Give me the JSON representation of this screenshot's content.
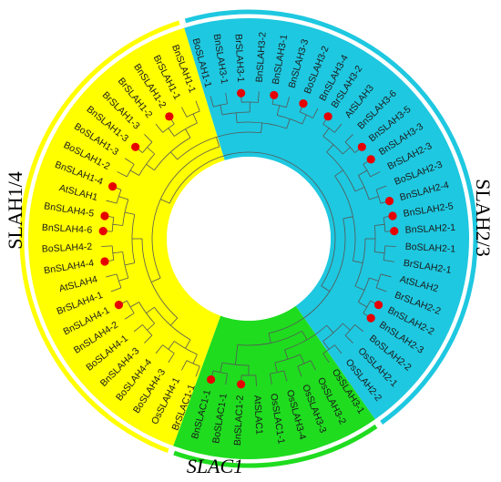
{
  "colors": {
    "slah14": "#ffff00",
    "slah23": "#1ec8e0",
    "slac1": "#1fdc1f",
    "marker": "#e60000",
    "branch": "#555555",
    "ring_slah14": "#ffff00",
    "ring_slah23": "#1ec8e0",
    "ring_slac1": "#1fdc1f"
  },
  "clades": [
    {
      "id": "slah14",
      "label": "SLAH1/4",
      "start": 200,
      "end": 343
    },
    {
      "id": "slah23",
      "label": "SLAH2/3",
      "start": 343,
      "end": 505
    },
    {
      "id": "slac1",
      "label": "SLAC1",
      "start": 505,
      "end": 560
    }
  ],
  "leaves": [
    {
      "name": "BnSLAH3-1",
      "angle": 351,
      "marked": false
    },
    {
      "name": "BrSLAH3-1",
      "angle": 357,
      "marked": true
    },
    {
      "name": "BnSLAH3-2",
      "angle": 4,
      "marked": false
    },
    {
      "name": "BnSLAH3-1",
      "angle": 10,
      "marked": true
    },
    {
      "name": "BnSLAH3-3",
      "angle": 16,
      "marked": false
    },
    {
      "name": "BoSLAH3-2",
      "angle": 22,
      "marked": true
    },
    {
      "name": "BnSLAH3-4",
      "angle": 28,
      "marked": false
    },
    {
      "name": "BrSLAH3-2",
      "angle": 33,
      "marked": true
    },
    {
      "name": "AtSLAH3",
      "angle": 39,
      "marked": false
    },
    {
      "name": "BnSLAH3-6",
      "angle": 45,
      "marked": false
    },
    {
      "name": "BnSLAH3-5",
      "angle": 51,
      "marked": true
    },
    {
      "name": "BnSLAH3-3",
      "angle": 57,
      "marked": true
    },
    {
      "name": "BrSLAH2-3",
      "angle": 63,
      "marked": false
    },
    {
      "name": "BoSLAH2-3",
      "angle": 69,
      "marked": false
    },
    {
      "name": "BnSLAH2-4",
      "angle": 75,
      "marked": true
    },
    {
      "name": "BnSLAH2-5",
      "angle": 81,
      "marked": true
    },
    {
      "name": "BnSLAH2-1",
      "angle": 87,
      "marked": true
    },
    {
      "name": "BoSLAH2-1",
      "angle": 93,
      "marked": false
    },
    {
      "name": "BrSLAH2-1",
      "angle": 99,
      "marked": false
    },
    {
      "name": "AtSLAH2",
      "angle": 105,
      "marked": false
    },
    {
      "name": "BrSLAH2-2",
      "angle": 111,
      "marked": false
    },
    {
      "name": "BnSLAH2-2",
      "angle": 117,
      "marked": true
    },
    {
      "name": "BnSLAH2-3",
      "angle": 123,
      "marked": true
    },
    {
      "name": "BoSLAH2-2",
      "angle": 129,
      "marked": false
    },
    {
      "name": "OsSLAH2-1",
      "angle": 135,
      "marked": false
    },
    {
      "name": "OsSLAH2-2",
      "angle": 141,
      "marked": false
    },
    {
      "name": "OsSLAH3-1",
      "angle": 147,
      "marked": false
    },
    {
      "name": "OsSLAH3-2",
      "angle": 153,
      "marked": false
    },
    {
      "name": "OsSLAH3-3",
      "angle": 159,
      "marked": false
    },
    {
      "name": "OsSLAH3-4",
      "angle": 165,
      "marked": false
    },
    {
      "name": "OsSLAC1-1",
      "angle": 171,
      "marked": false
    },
    {
      "name": "AtSLAC1",
      "angle": 177,
      "marked": false
    },
    {
      "name": "BnSLAC1-2",
      "angle": 183,
      "marked": true
    },
    {
      "name": "BoSLAC1-1",
      "angle": 189,
      "marked": false
    },
    {
      "name": "BnSLAC1-1",
      "angle": 195,
      "marked": true
    },
    {
      "name": "BrSLAC1-1",
      "angle": 201,
      "marked": false
    },
    {
      "name": "OsSLAH4-1",
      "angle": 207,
      "marked": false
    },
    {
      "name": "BoSLAH4-3",
      "angle": 213,
      "marked": false
    },
    {
      "name": "BoSLAH4-4",
      "angle": 219,
      "marked": false
    },
    {
      "name": "BnSLAH4-3",
      "angle": 225,
      "marked": false
    },
    {
      "name": "BoSLAH4-1",
      "angle": 231,
      "marked": false
    },
    {
      "name": "BnSLAH4-2",
      "angle": 237,
      "marked": false
    },
    {
      "name": "BnSLAH4-1",
      "angle": 243,
      "marked": true
    },
    {
      "name": "BrSLAH4-1",
      "angle": 249,
      "marked": false
    },
    {
      "name": "AtSLAH4",
      "angle": 255,
      "marked": false
    },
    {
      "name": "BnSLAH4-4",
      "angle": 261,
      "marked": true
    },
    {
      "name": "BoSLAH4-2",
      "angle": 267,
      "marked": false
    },
    {
      "name": "BnSLAH4-6",
      "angle": 273,
      "marked": true
    },
    {
      "name": "BnSLAH4-5",
      "angle": 279,
      "marked": true
    },
    {
      "name": "AtSLAH1",
      "angle": 285,
      "marked": false
    },
    {
      "name": "BnSLAH1-4",
      "angle": 291,
      "marked": true
    },
    {
      "name": "BoSLAH1-2",
      "angle": 297,
      "marked": false
    },
    {
      "name": "BoSLAH1-3",
      "angle": 303,
      "marked": false
    },
    {
      "name": "BnSLAH1-3",
      "angle": 309,
      "marked": true
    },
    {
      "name": "BrSLAH1-3",
      "angle": 315,
      "marked": false
    },
    {
      "name": "BrSLAH1-2",
      "angle": 321,
      "marked": false
    },
    {
      "name": "BnSLAH1-2",
      "angle": 327,
      "marked": true
    },
    {
      "name": "BrSLAH1-1",
      "angle": 333,
      "marked": false
    },
    {
      "name": "BnSLAH1-1",
      "angle": 339,
      "marked": false
    },
    {
      "name": "BoSLAH1-1",
      "angle": 345,
      "marked": false
    }
  ]
}
